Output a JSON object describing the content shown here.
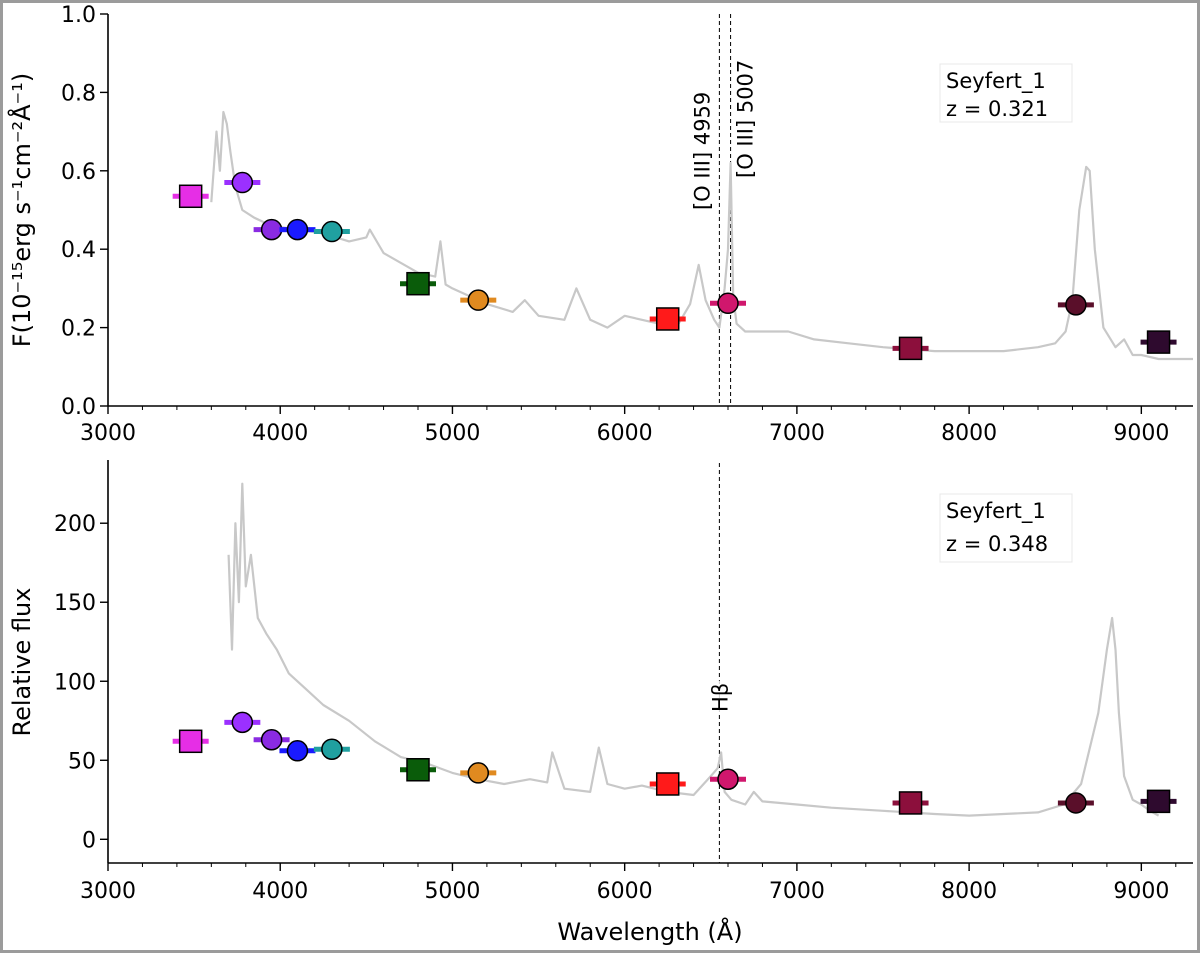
{
  "chart_data": [
    {
      "type": "line",
      "name": "top-panel",
      "ylabel": "F(10⁻¹⁵erg s⁻¹cm⁻²Å⁻¹)",
      "xlabel": "",
      "xlim": [
        3000,
        9300
      ],
      "ylim": [
        0.0,
        1.0
      ],
      "xticks": [
        "3000",
        "4000",
        "5000",
        "6000",
        "7000",
        "8000",
        "9000"
      ],
      "yticks": [
        "0.0",
        "0.2",
        "0.4",
        "0.6",
        "0.8",
        "1.0"
      ],
      "annotation": {
        "line1": "Seyfert_1",
        "line2": "z = 0.321"
      },
      "lines": [
        {
          "x": 6550,
          "label": "[O III] 4959"
        },
        {
          "x": 6615,
          "label": "[O III] 5007"
        }
      ],
      "spectrum": {
        "color": "#c8c8c8",
        "x": [
          3600,
          3630,
          3650,
          3670,
          3690,
          3710,
          3740,
          3780,
          3850,
          3950,
          4100,
          4250,
          4400,
          4500,
          4520,
          4600,
          4800,
          4900,
          4930,
          4960,
          5000,
          5100,
          5200,
          5350,
          5420,
          5500,
          5650,
          5720,
          5800,
          5900,
          6000,
          6100,
          6200,
          6300,
          6380,
          6430,
          6470,
          6520,
          6550,
          6580,
          6600,
          6615,
          6630,
          6650,
          6700,
          6800,
          6950,
          7100,
          7300,
          7500,
          7800,
          8000,
          8200,
          8400,
          8500,
          8560,
          8600,
          8640,
          8680,
          8700,
          8730,
          8780,
          8850,
          8900,
          8950,
          9000,
          9100,
          9200,
          9300
        ],
        "y": [
          0.52,
          0.7,
          0.6,
          0.75,
          0.72,
          0.65,
          0.56,
          0.5,
          0.48,
          0.46,
          0.45,
          0.44,
          0.42,
          0.43,
          0.45,
          0.39,
          0.34,
          0.33,
          0.42,
          0.31,
          0.3,
          0.28,
          0.26,
          0.24,
          0.27,
          0.23,
          0.22,
          0.3,
          0.22,
          0.2,
          0.23,
          0.22,
          0.21,
          0.2,
          0.26,
          0.36,
          0.27,
          0.22,
          0.2,
          0.3,
          0.4,
          0.62,
          0.28,
          0.21,
          0.19,
          0.19,
          0.19,
          0.17,
          0.16,
          0.15,
          0.14,
          0.14,
          0.14,
          0.15,
          0.16,
          0.19,
          0.27,
          0.5,
          0.61,
          0.6,
          0.4,
          0.2,
          0.15,
          0.17,
          0.13,
          0.13,
          0.12,
          0.12,
          0.12
        ]
      },
      "photometry": [
        {
          "x": 3480,
          "y": 0.535,
          "shape": "square",
          "color": "#e62ee6"
        },
        {
          "x": 3780,
          "y": 0.57,
          "shape": "circle",
          "color": "#9b30ff"
        },
        {
          "x": 3950,
          "y": 0.45,
          "shape": "circle",
          "color": "#8a2be2"
        },
        {
          "x": 4100,
          "y": 0.45,
          "shape": "circle",
          "color": "#1a1aff"
        },
        {
          "x": 4300,
          "y": 0.445,
          "shape": "circle",
          "color": "#20a0a0"
        },
        {
          "x": 4800,
          "y": 0.312,
          "shape": "square",
          "color": "#0a5c0a"
        },
        {
          "x": 5150,
          "y": 0.27,
          "shape": "circle",
          "color": "#e08a20"
        },
        {
          "x": 6250,
          "y": 0.222,
          "shape": "square",
          "color": "#ff1a1a"
        },
        {
          "x": 6600,
          "y": 0.262,
          "shape": "circle",
          "color": "#d0176d"
        },
        {
          "x": 7660,
          "y": 0.147,
          "shape": "square",
          "color": "#8c0f3c"
        },
        {
          "x": 8620,
          "y": 0.258,
          "shape": "circle",
          "color": "#5a0f2a"
        },
        {
          "x": 9100,
          "y": 0.163,
          "shape": "square",
          "color": "#2e0a2e"
        }
      ]
    },
    {
      "type": "line",
      "name": "bottom-panel",
      "ylabel": "Relative flux",
      "xlabel": "Wavelength (Å)",
      "xlim": [
        3000,
        9300
      ],
      "ylim": [
        -15,
        240
      ],
      "xticks": [
        "3000",
        "4000",
        "5000",
        "6000",
        "7000",
        "8000",
        "9000"
      ],
      "yticks": [
        "0",
        "50",
        "100",
        "150",
        "200"
      ],
      "annotation": {
        "line1": "Seyfert_1",
        "line2": "z = 0.348"
      },
      "lines": [
        {
          "x": 6550,
          "label": "Hβ"
        }
      ],
      "spectrum": {
        "color": "#c8c8c8",
        "x": [
          3700,
          3720,
          3740,
          3760,
          3780,
          3800,
          3830,
          3870,
          3920,
          3980,
          4050,
          4150,
          4250,
          4400,
          4550,
          4700,
          4850,
          5000,
          5150,
          5300,
          5450,
          5550,
          5580,
          5650,
          5800,
          5850,
          5900,
          6000,
          6100,
          6250,
          6400,
          6500,
          6540,
          6560,
          6580,
          6620,
          6700,
          6750,
          6800,
          7000,
          7200,
          7500,
          7800,
          8000,
          8200,
          8400,
          8550,
          8650,
          8750,
          8800,
          8830,
          8850,
          8870,
          8900,
          8950,
          9000,
          9050,
          9100
        ],
        "y": [
          180,
          120,
          200,
          150,
          225,
          160,
          180,
          140,
          130,
          120,
          105,
          95,
          85,
          75,
          62,
          52,
          48,
          42,
          38,
          35,
          38,
          36,
          55,
          32,
          30,
          58,
          35,
          32,
          34,
          30,
          28,
          40,
          45,
          55,
          30,
          25,
          22,
          30,
          24,
          22,
          20,
          18,
          16,
          15,
          16,
          17,
          22,
          35,
          80,
          120,
          140,
          120,
          80,
          40,
          25,
          22,
          18,
          15
        ]
      },
      "photometry": [
        {
          "x": 3480,
          "y": 62,
          "shape": "square",
          "color": "#e62ee6"
        },
        {
          "x": 3780,
          "y": 74,
          "shape": "circle",
          "color": "#9b30ff"
        },
        {
          "x": 3950,
          "y": 63,
          "shape": "circle",
          "color": "#8a2be2"
        },
        {
          "x": 4100,
          "y": 56,
          "shape": "circle",
          "color": "#1a1aff"
        },
        {
          "x": 4300,
          "y": 57,
          "shape": "circle",
          "color": "#20a0a0"
        },
        {
          "x": 4800,
          "y": 44,
          "shape": "square",
          "color": "#0a5c0a"
        },
        {
          "x": 5150,
          "y": 42,
          "shape": "circle",
          "color": "#e08a20"
        },
        {
          "x": 6250,
          "y": 35,
          "shape": "square",
          "color": "#ff1a1a"
        },
        {
          "x": 6600,
          "y": 38,
          "shape": "circle",
          "color": "#d0176d"
        },
        {
          "x": 7660,
          "y": 23,
          "shape": "square",
          "color": "#8c0f3c"
        },
        {
          "x": 8620,
          "y": 23,
          "shape": "circle",
          "color": "#5a0f2a"
        },
        {
          "x": 9100,
          "y": 24,
          "shape": "square",
          "color": "#2e0a2e"
        }
      ]
    }
  ]
}
